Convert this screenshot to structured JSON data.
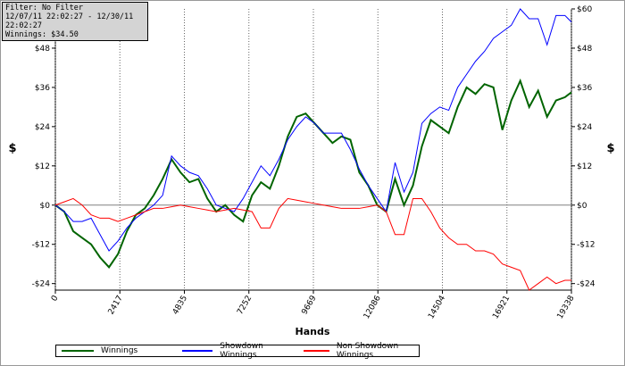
{
  "chart_data": {
    "type": "line",
    "info": [
      "Filter: No Filter",
      "12/07/11 22:02:27 - 12/30/11 22:02:27",
      "Winnings: $34.50"
    ],
    "x_label": "Hands",
    "y_label": "$",
    "x": [
      0,
      335,
      670,
      1005,
      1340,
      1675,
      2010,
      2345,
      2680,
      3015,
      3350,
      3685,
      4020,
      4355,
      4690,
      5025,
      5360,
      5695,
      6030,
      6365,
      6700,
      7035,
      7370,
      7705,
      8040,
      8375,
      8710,
      9045,
      9380,
      9715,
      10050,
      10385,
      10720,
      11055,
      11390,
      11725,
      12060,
      12395,
      12730,
      13065,
      13400,
      13735,
      14070,
      14405,
      14740,
      15075,
      15410,
      15745,
      16080,
      16415,
      16750,
      17085,
      17420,
      17755,
      18090,
      18425,
      18760,
      19095,
      19338
    ],
    "series": [
      {
        "name": "Winnings",
        "color": "#006400",
        "width": 2,
        "values": [
          0,
          -2,
          -8,
          -10,
          -12,
          -16,
          -19,
          -15,
          -8,
          -3,
          -1,
          3,
          8,
          14,
          10,
          7,
          8,
          2,
          -2,
          0,
          -3,
          -5,
          3,
          7,
          5,
          12,
          21,
          27,
          28,
          25,
          22,
          19,
          21,
          20,
          10,
          6,
          0,
          -2,
          8,
          0,
          6,
          18,
          26,
          24,
          22,
          30,
          36,
          34,
          37,
          36,
          23,
          32,
          38,
          30,
          35,
          27,
          32,
          33,
          34.5
        ]
      },
      {
        "name": "Showdown Winnings",
        "color": "#0000ff",
        "width": 1,
        "values": [
          0,
          -2,
          -5,
          -5,
          -4,
          -9,
          -14,
          -11,
          -7,
          -4,
          -2,
          0,
          3,
          15,
          12,
          10,
          9,
          5,
          0,
          -1,
          -2,
          2,
          7,
          12,
          9,
          14,
          20,
          24,
          27,
          25,
          22,
          22,
          22,
          17,
          11,
          6,
          2,
          -2,
          13,
          4,
          10,
          25,
          28,
          30,
          29,
          36,
          40,
          44,
          47,
          51,
          53,
          55,
          60,
          57,
          57,
          49,
          58,
          58,
          56
        ]
      },
      {
        "name": "Non Showdown Winnings",
        "color": "#ff0000",
        "width": 1,
        "values": [
          0,
          1,
          2,
          0,
          -3,
          -4,
          -4,
          -5,
          -4,
          -3,
          -2,
          -1,
          -1,
          -0.5,
          0,
          -0.5,
          -1,
          -1.5,
          -2,
          -1.5,
          -1,
          -1.5,
          -2,
          -7,
          -7,
          -1,
          2,
          1.5,
          1,
          0.5,
          0,
          -0.5,
          -1,
          -1,
          -1,
          -0.5,
          0,
          -2,
          -9,
          -9,
          2,
          2,
          -2,
          -7,
          -10,
          -12,
          -12,
          -14,
          -14,
          -15,
          -18,
          -19,
          -20,
          -26,
          -24,
          -22,
          -24,
          -23,
          -23
        ]
      }
    ],
    "xlim": [
      0,
      19338
    ],
    "xticks": [
      0,
      2417,
      4835,
      7252,
      9669,
      12086,
      14504,
      16921,
      19338
    ],
    "ylim": [
      -26,
      60
    ],
    "yticks": [
      {
        "value": -24,
        "label": "-$24"
      },
      {
        "value": -12,
        "label": "-$12"
      },
      {
        "value": 0,
        "label": "$0"
      },
      {
        "value": 12,
        "label": "$12"
      },
      {
        "value": 24,
        "label": "$24"
      },
      {
        "value": 36,
        "label": "$36"
      },
      {
        "value": 48,
        "label": "$48"
      },
      {
        "value": 60,
        "label": "$60"
      }
    ],
    "grid": true
  }
}
